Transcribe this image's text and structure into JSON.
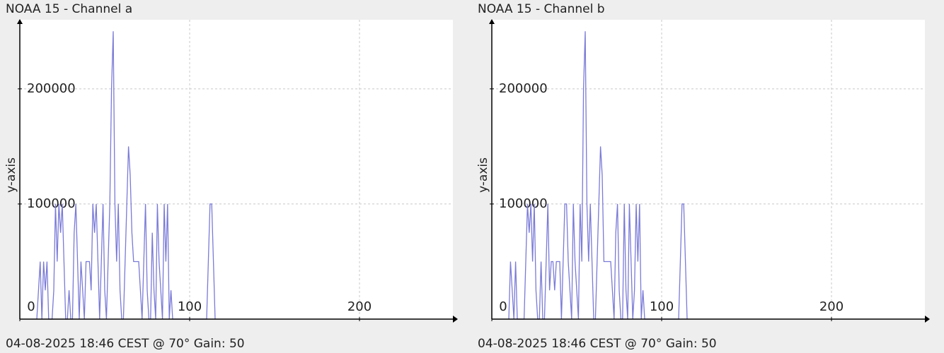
{
  "chart_data": [
    {
      "type": "line",
      "title": "NOAA 15 - Channel a",
      "footer": "04-08-2025 18:46 CEST @ 70° Gain: 50",
      "y_label": "y-axis",
      "x": [
        10,
        11,
        12,
        13,
        14,
        15,
        16,
        17,
        18,
        19,
        20,
        21,
        22,
        23,
        24,
        25,
        26,
        27,
        28,
        29,
        30,
        31,
        32,
        33,
        34,
        35,
        36,
        37,
        38,
        39,
        40,
        41,
        42,
        43,
        44,
        45,
        46,
        47,
        48,
        49,
        50,
        51,
        52,
        53,
        54,
        55,
        56,
        57,
        58,
        59,
        60,
        61,
        62,
        63,
        64,
        65,
        66,
        67,
        68,
        69,
        70,
        71,
        72,
        73,
        74,
        75,
        76,
        77,
        78,
        79,
        80,
        81,
        82,
        83,
        84,
        85,
        86,
        87,
        88,
        89,
        90,
        110,
        111,
        112,
        113,
        114,
        115
      ],
      "series": [
        {
          "color": "#7a7ad8",
          "values": [
            0,
            25000,
            50000,
            0,
            50000,
            25000,
            50000,
            0,
            0,
            0,
            25000,
            100000,
            50000,
            100000,
            75000,
            100000,
            50000,
            0,
            0,
            25000,
            0,
            0,
            75000,
            100000,
            50000,
            0,
            50000,
            25000,
            0,
            50000,
            50000,
            50000,
            25000,
            100000,
            75000,
            100000,
            50000,
            0,
            50000,
            100000,
            25000,
            0,
            50000,
            100000,
            200000,
            250000,
            100000,
            50000,
            100000,
            25000,
            0,
            0,
            50000,
            100000,
            150000,
            125000,
            75000,
            50000,
            50000,
            50000,
            50000,
            25000,
            0,
            50000,
            100000,
            25000,
            0,
            0,
            75000,
            25000,
            0,
            100000,
            50000,
            25000,
            0,
            100000,
            50000,
            100000,
            0,
            25000,
            0,
            0,
            50000,
            100000,
            100000,
            50000,
            0
          ]
        }
      ],
      "xlim": [
        0,
        255
      ],
      "ylim": [
        0,
        260000
      ],
      "xticks": [
        0,
        100,
        200
      ],
      "yticks": [
        100000,
        200000
      ],
      "grid": true
    },
    {
      "type": "line",
      "title": "NOAA 15 - Channel b",
      "footer": "04-08-2025 18:46 CEST @ 70° Gain: 50",
      "y_label": "y-axis",
      "x": [
        10,
        11,
        12,
        13,
        14,
        15,
        16,
        17,
        18,
        19,
        20,
        21,
        22,
        23,
        24,
        25,
        26,
        27,
        28,
        29,
        30,
        31,
        32,
        33,
        34,
        35,
        36,
        37,
        38,
        39,
        40,
        41,
        42,
        43,
        44,
        45,
        46,
        47,
        48,
        49,
        50,
        51,
        52,
        53,
        54,
        55,
        56,
        57,
        58,
        59,
        60,
        61,
        62,
        63,
        64,
        65,
        66,
        67,
        68,
        69,
        70,
        71,
        72,
        73,
        74,
        75,
        76,
        77,
        78,
        79,
        80,
        81,
        82,
        83,
        84,
        85,
        86,
        87,
        88,
        89,
        90,
        110,
        111,
        112,
        113,
        114,
        115
      ],
      "series": [
        {
          "color": "#7a7ad8",
          "values": [
            0,
            50000,
            25000,
            0,
            50000,
            0,
            0,
            0,
            0,
            0,
            50000,
            100000,
            75000,
            100000,
            50000,
            100000,
            25000,
            0,
            0,
            50000,
            0,
            0,
            50000,
            100000,
            25000,
            50000,
            50000,
            25000,
            50000,
            50000,
            50000,
            0,
            50000,
            100000,
            100000,
            50000,
            25000,
            0,
            100000,
            50000,
            25000,
            0,
            100000,
            50000,
            200000,
            250000,
            100000,
            50000,
            100000,
            50000,
            0,
            0,
            50000,
            100000,
            150000,
            125000,
            50000,
            50000,
            50000,
            50000,
            50000,
            25000,
            0,
            75000,
            100000,
            25000,
            0,
            0,
            100000,
            25000,
            0,
            100000,
            50000,
            0,
            25000,
            100000,
            50000,
            100000,
            0,
            25000,
            0,
            0,
            50000,
            100000,
            100000,
            50000,
            0
          ]
        }
      ],
      "xlim": [
        0,
        255
      ],
      "ylim": [
        0,
        260000
      ],
      "xticks": [
        0,
        100,
        200
      ],
      "yticks": [
        100000,
        200000
      ],
      "grid": true
    }
  ]
}
